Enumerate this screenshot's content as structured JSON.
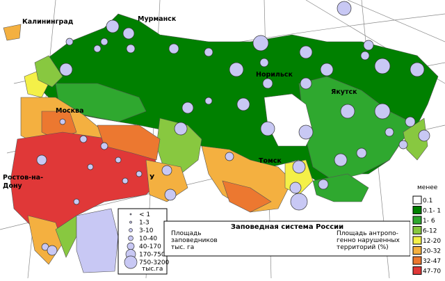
{
  "map": {
    "title": "Заповедная система России",
    "cities": [
      "Калининград",
      "Мурманск",
      "Норильск",
      "Москва",
      "Якутск",
      "Томск",
      "У"
    ],
    "rostov": [
      "Ростов-на-",
      "Дону"
    ],
    "area_legend": [
      "Площадь",
      "заповедников",
      "тыс. га"
    ],
    "disturbance_legend": [
      "Площадь антропо-",
      "генно нарушенных",
      "территорий (%)"
    ],
    "size_classes": [
      "< 1",
      "1-3",
      "3-10",
      "10-40",
      "40-170",
      "170-750",
      "750-3200"
    ],
    "size_unit": "тыс.га",
    "disturbance_header": "менее",
    "disturbance_classes": [
      {
        "label": "0.1",
        "color": "#ffffff"
      },
      {
        "label": "0.1- 1",
        "color": "#008000"
      },
      {
        "label": "1- 6",
        "color": "#2fa82f"
      },
      {
        "label": "6-12",
        "color": "#88c840"
      },
      {
        "label": "12-20",
        "color": "#f4f048"
      },
      {
        "label": "20-32",
        "color": "#f4b040"
      },
      {
        "label": "32-47",
        "color": "#ec7830"
      },
      {
        "label": "47-70",
        "color": "#e03838"
      }
    ]
  }
}
